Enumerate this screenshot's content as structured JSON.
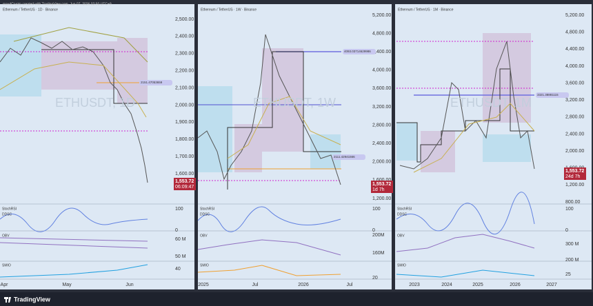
{
  "header": {
    "caption": "maxdCrypto created with TradingView.com, Jun 07, 2026 02:50 UTC+9"
  },
  "panels": [
    {
      "legend": "Ethereum / TetherUS · 1D · Binance",
      "watermark": "ETHUSDT, 1D",
      "price_axis": [
        "2,500.00",
        "2,400.00",
        "2,300.00",
        "2,200.00",
        "2,100.00",
        "2,000.00",
        "1,900.00",
        "1,800.00",
        "1,700.00",
        "1,600.00"
      ],
      "price_tag": {
        "price": "1,553.72",
        "countdown": "06:09:47"
      },
      "line_labels": [
        "2151.47053659"
      ],
      "panes": [
        "StochRSI",
        "DDSC",
        "OBV",
        "SMIO"
      ],
      "sub_axis": [
        "100",
        "0",
        "60 M",
        "50 M",
        "40"
      ],
      "time_axis": [
        "Apr",
        "May",
        "Jun"
      ]
    },
    {
      "legend": "Ethereum / TetherUS · 1W · Binance",
      "watermark": "ETHUSDT, 1W",
      "price_axis": [
        "5,200.00",
        "4,800.00",
        "4,400.00",
        "4,000.00",
        "3,600.00",
        "3,200.00",
        "2,800.00",
        "2,400.00",
        "2,000.00",
        "1,600.00",
        "1,200.00"
      ],
      "price_tag": {
        "price": "1,553.72",
        "countdown": "1d 7h"
      },
      "line_labels": [
        "4093.03714629986",
        "2111.42941566"
      ],
      "panes": [
        "StochRSI",
        "DDSC",
        "OBV",
        "SMIO"
      ],
      "sub_axis": [
        "100",
        "0",
        "200M",
        "160M",
        "20"
      ],
      "time_axis": [
        "2025",
        "Jul",
        "2026",
        "Jul"
      ]
    },
    {
      "legend": "Ethereum / TetherUS · 1M · Binance",
      "watermark": "ETHUSDT, 1M",
      "price_axis": [
        "5,200.00",
        "4,800.00",
        "4,400.00",
        "4,000.00",
        "3,600.00",
        "3,200.00",
        "2,800.00",
        "2,400.00",
        "2,000.00",
        "1,600.00",
        "1,200.00",
        "800.00"
      ],
      "price_tag": {
        "price": "1,553.72",
        "countdown": "24d 7h"
      },
      "line_labels": [
        "3321.38881115"
      ],
      "panes": [
        "StochRSI",
        "DDSC",
        "OBV",
        "SMIO"
      ],
      "sub_axis": [
        "100",
        "0",
        "300 M",
        "200 M",
        "25"
      ],
      "time_axis": [
        "2023",
        "2024",
        "2025",
        "2026",
        "2027"
      ]
    }
  ],
  "footer": {
    "brand": "TradingView"
  }
}
